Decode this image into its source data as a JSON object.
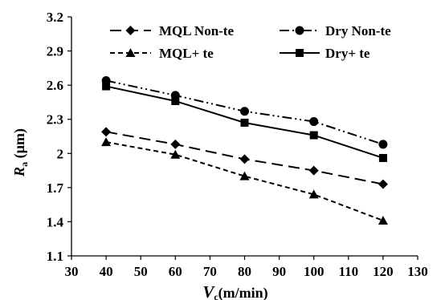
{
  "chart_data": {
    "type": "line",
    "xlabel": {
      "main": "V",
      "sub": "c",
      "rest": "(m/min)"
    },
    "ylabel": {
      "main": "R",
      "sub": "a",
      "rest": " (µm)"
    },
    "xlim": [
      30,
      130
    ],
    "ylim": [
      1.1,
      3.2
    ],
    "xticks": [
      "30",
      "40",
      "50",
      "60",
      "70",
      "80",
      "90",
      "100",
      "110",
      "120",
      "130"
    ],
    "yticks": [
      "1.1",
      "1.4",
      "1.7",
      "2",
      "2.3",
      "2.6",
      "2.9",
      "3.2"
    ],
    "x": [
      40,
      60,
      80,
      100,
      120
    ],
    "legend_position": "top",
    "series": [
      {
        "name": "MQL Non-te",
        "marker": "diamond",
        "line": "long-dash",
        "values": [
          2.19,
          2.08,
          1.95,
          1.85,
          1.73
        ]
      },
      {
        "name": "Dry Non-te",
        "marker": "circle",
        "line": "dash-dot-dot",
        "values": [
          2.64,
          2.51,
          2.37,
          2.28,
          2.08
        ]
      },
      {
        "name": "MQL+ te",
        "marker": "triangle",
        "line": "short-dash",
        "values": [
          2.1,
          1.99,
          1.8,
          1.64,
          1.41
        ]
      },
      {
        "name": "Dry+ te",
        "marker": "square",
        "line": "solid",
        "values": [
          2.59,
          2.46,
          2.27,
          2.16,
          1.96
        ]
      }
    ]
  }
}
